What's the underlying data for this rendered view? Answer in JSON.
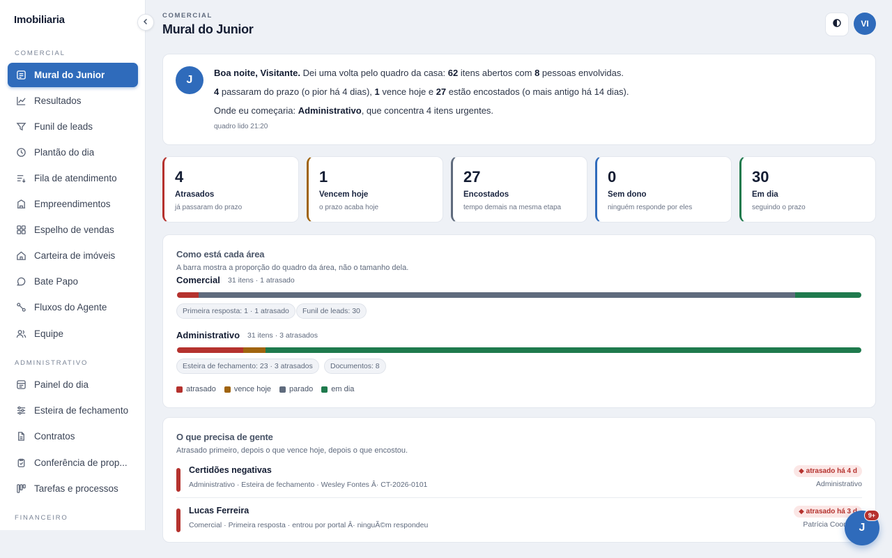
{
  "sidebar": {
    "brand": "Imobiliaria",
    "sections": [
      "COMERCIAL",
      "ADMINISTRATIVO",
      "FINANCEIRO"
    ],
    "items": [
      {
        "label": "Mural do Junior",
        "icon": "mural-icon"
      },
      {
        "label": "Resultados",
        "icon": "chart-line-icon"
      },
      {
        "label": "Funil de leads",
        "icon": "funnel-icon"
      },
      {
        "label": "Plantão do dia",
        "icon": "clock-icon"
      },
      {
        "label": "Fila de atendimento",
        "icon": "queue-icon"
      },
      {
        "label": "Empreendimentos",
        "icon": "building-icon"
      },
      {
        "label": "Espelho de vendas",
        "icon": "grid-icon"
      },
      {
        "label": "Carteira de imóveis",
        "icon": "house-icon"
      },
      {
        "label": "Bate Papo",
        "icon": "chat-icon"
      },
      {
        "label": "Fluxos do Agente",
        "icon": "flow-icon"
      },
      {
        "label": "Equipe",
        "icon": "team-icon"
      },
      {
        "label": "Painel do dia",
        "icon": "panel-icon"
      },
      {
        "label": "Esteira de fechamento",
        "icon": "sliders-icon"
      },
      {
        "label": "Contratos",
        "icon": "document-icon"
      },
      {
        "label": "Conferência de prop...",
        "icon": "clipboard-check-icon"
      },
      {
        "label": "Tarefas e processos",
        "icon": "kanban-icon"
      }
    ]
  },
  "header": {
    "eyebrow": "COMERCIAL",
    "title": "Mural do Junior",
    "user_initials": "VI"
  },
  "greeting": {
    "avatar": "J",
    "l1_bold": "Boa noite, Visitante.",
    "l1_a": " Dei uma volta pelo quadro da casa: ",
    "l1_n1": "62",
    "l1_b": " itens abertos com ",
    "l1_n2": "8",
    "l1_c": " pessoas envolvidas.",
    "l2_n1": "4",
    "l2_a": " passaram do prazo (o pior há 4 dias), ",
    "l2_n2": "1",
    "l2_b": " vence hoje e ",
    "l2_n3": "27",
    "l2_c": " estão encostados (o mais antigo há 14 dias).",
    "l3_a": "Onde eu começaria: ",
    "l3_bold": "Administrativo",
    "l3_b": ", que concentra 4 itens urgentes.",
    "meta": "quadro lido 21:20"
  },
  "stats": [
    {
      "num": "4",
      "title": "Atrasados",
      "sub": "já passaram do prazo",
      "color": "#b5322e"
    },
    {
      "num": "1",
      "title": "Vencem hoje",
      "sub": "o prazo acaba hoje",
      "color": "#a0640f"
    },
    {
      "num": "27",
      "title": "Encostados",
      "sub": "tempo demais na mesma etapa",
      "color": "#5f6b7d"
    },
    {
      "num": "0",
      "title": "Sem dono",
      "sub": "ninguém responde por eles",
      "color": "#2f6bbb"
    },
    {
      "num": "30",
      "title": "Em dia",
      "sub": "seguindo o prazo",
      "color": "#1f7a4d"
    }
  ],
  "areas": {
    "title": "Como está cada área",
    "subtitle": "A barra mostra a proporção do quadro da área, não o tamanho dela.",
    "list": [
      {
        "name": "Comercial",
        "meta": "31 itens · 1 atrasado",
        "segments": {
          "atrasado": 0.032,
          "vence_hoje": 0,
          "parado": 0.871,
          "em_dia": 0.097
        },
        "chips": [
          "Primeira resposta: 1 · 1 atrasado",
          "Funil de leads: 30"
        ]
      },
      {
        "name": "Administrativo",
        "meta": "31 itens · 3 atrasados",
        "segments": {
          "atrasado": 0.097,
          "vence_hoje": 0.032,
          "parado": 0,
          "em_dia": 0.871
        },
        "chips": [
          "Esteira de fechamento: 23 · 3 atrasados",
          "Documentos: 8"
        ]
      }
    ],
    "legend": [
      {
        "label": "atrasado",
        "color": "#b5322e"
      },
      {
        "label": "vence hoje",
        "color": "#a0640f"
      },
      {
        "label": "parado",
        "color": "#5f6b7d"
      },
      {
        "label": "em dia",
        "color": "#1f7a4d"
      }
    ]
  },
  "needs": {
    "title": "O que precisa de gente",
    "subtitle": "Atrasado primeiro, depois o que vence hoje, depois o que encostou.",
    "items": [
      {
        "title": "Certidões negativas",
        "sub": "Administrativo · Esteira de fechamento · Wesley Fontes Â· CT-2026-0101",
        "badge": "atrasado há 4 d",
        "owner": "Administrativo"
      },
      {
        "title": "Lucas Ferreira",
        "sub": "Comercial · Primeira resposta · entrou por portal Â· ninguÃ©m respondeu",
        "badge": "atrasado há 3 d",
        "owner": "Patrícia Coordena"
      }
    ]
  },
  "fab": {
    "label": "J",
    "badge": "9+"
  }
}
